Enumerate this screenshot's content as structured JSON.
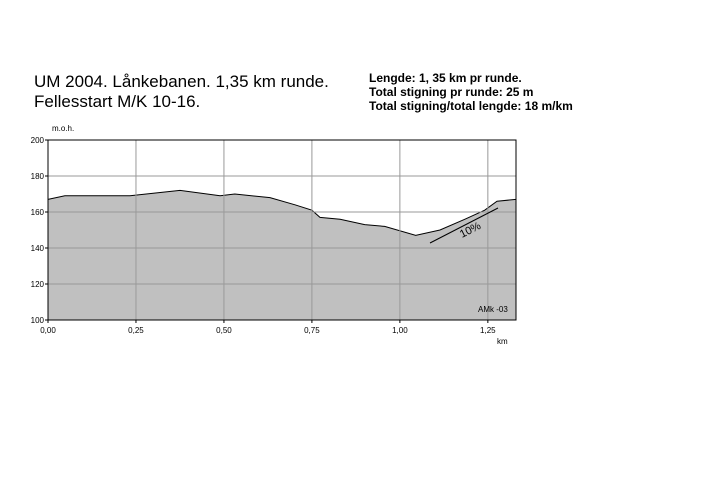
{
  "chart_data": {
    "type": "area",
    "title_lines": [
      "UM 2004. Lånkebanen. 1,35 km runde.",
      "Fellesstart M/K 10-16."
    ],
    "info_lines": [
      "Lengde: 1, 35 km pr runde.",
      "Total stigning pr runde: 25 m",
      "Total stigning/total lengde:  18 m/km"
    ],
    "y_label": "m.o.h.",
    "x_label": "km",
    "annotation": "10%",
    "credit": "AMk -03",
    "x": [
      0,
      0.048,
      0.233,
      0.375,
      0.489,
      0.531,
      0.631,
      0.702,
      0.75,
      0.773,
      0.83,
      0.9,
      0.957,
      1.045,
      1.114,
      1.185,
      1.241,
      1.276,
      1.33
    ],
    "values": [
      167,
      169,
      169,
      172,
      169,
      170,
      168,
      164,
      161,
      157,
      156,
      153,
      152,
      147,
      150,
      156,
      161,
      166,
      167
    ],
    "color": "#c0c0c0",
    "xlim": [
      0,
      1.33
    ],
    "xticks": [
      {
        "value": 0,
        "label": "0,00"
      },
      {
        "value": 0.25,
        "label": "0,25"
      },
      {
        "value": 0.5,
        "label": "0,50"
      },
      {
        "value": 0.75,
        "label": "0,75"
      },
      {
        "value": 1,
        "label": "1,00"
      },
      {
        "value": 1.25,
        "label": "1,25"
      }
    ],
    "ylim": [
      100,
      200
    ],
    "yticks": [
      100,
      120,
      140,
      160,
      180,
      200
    ],
    "grid": true
  }
}
